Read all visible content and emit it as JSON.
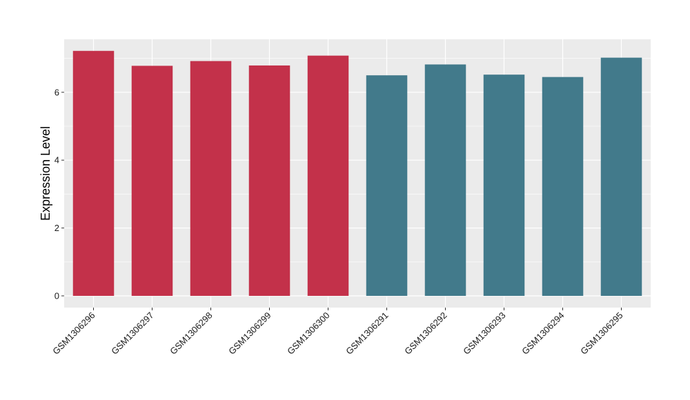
{
  "chart_data": {
    "type": "bar",
    "title": "",
    "xlabel": "",
    "ylabel": "Expression Level",
    "ylim": [
      0,
      7.6
    ],
    "yticks": [
      0,
      2,
      4,
      6
    ],
    "grid": true,
    "legend": "none",
    "categories": [
      "GSM1306296",
      "GSM1306297",
      "GSM1306298",
      "GSM1306299",
      "GSM1306300",
      "GSM1306291",
      "GSM1306292",
      "GSM1306293",
      "GSM1306294",
      "GSM1306295"
    ],
    "values": [
      7.22,
      6.78,
      6.92,
      6.79,
      7.08,
      6.5,
      6.82,
      6.52,
      6.45,
      7.02
    ],
    "bar_colors": [
      "#c3314a",
      "#c3314a",
      "#c3314a",
      "#c3314a",
      "#c3314a",
      "#427a8b",
      "#427a8b",
      "#427a8b",
      "#427a8b",
      "#427a8b"
    ],
    "colors": {
      "panel_bg": "#ebebeb",
      "grid": "#ffffff",
      "tick": "#333333"
    }
  }
}
